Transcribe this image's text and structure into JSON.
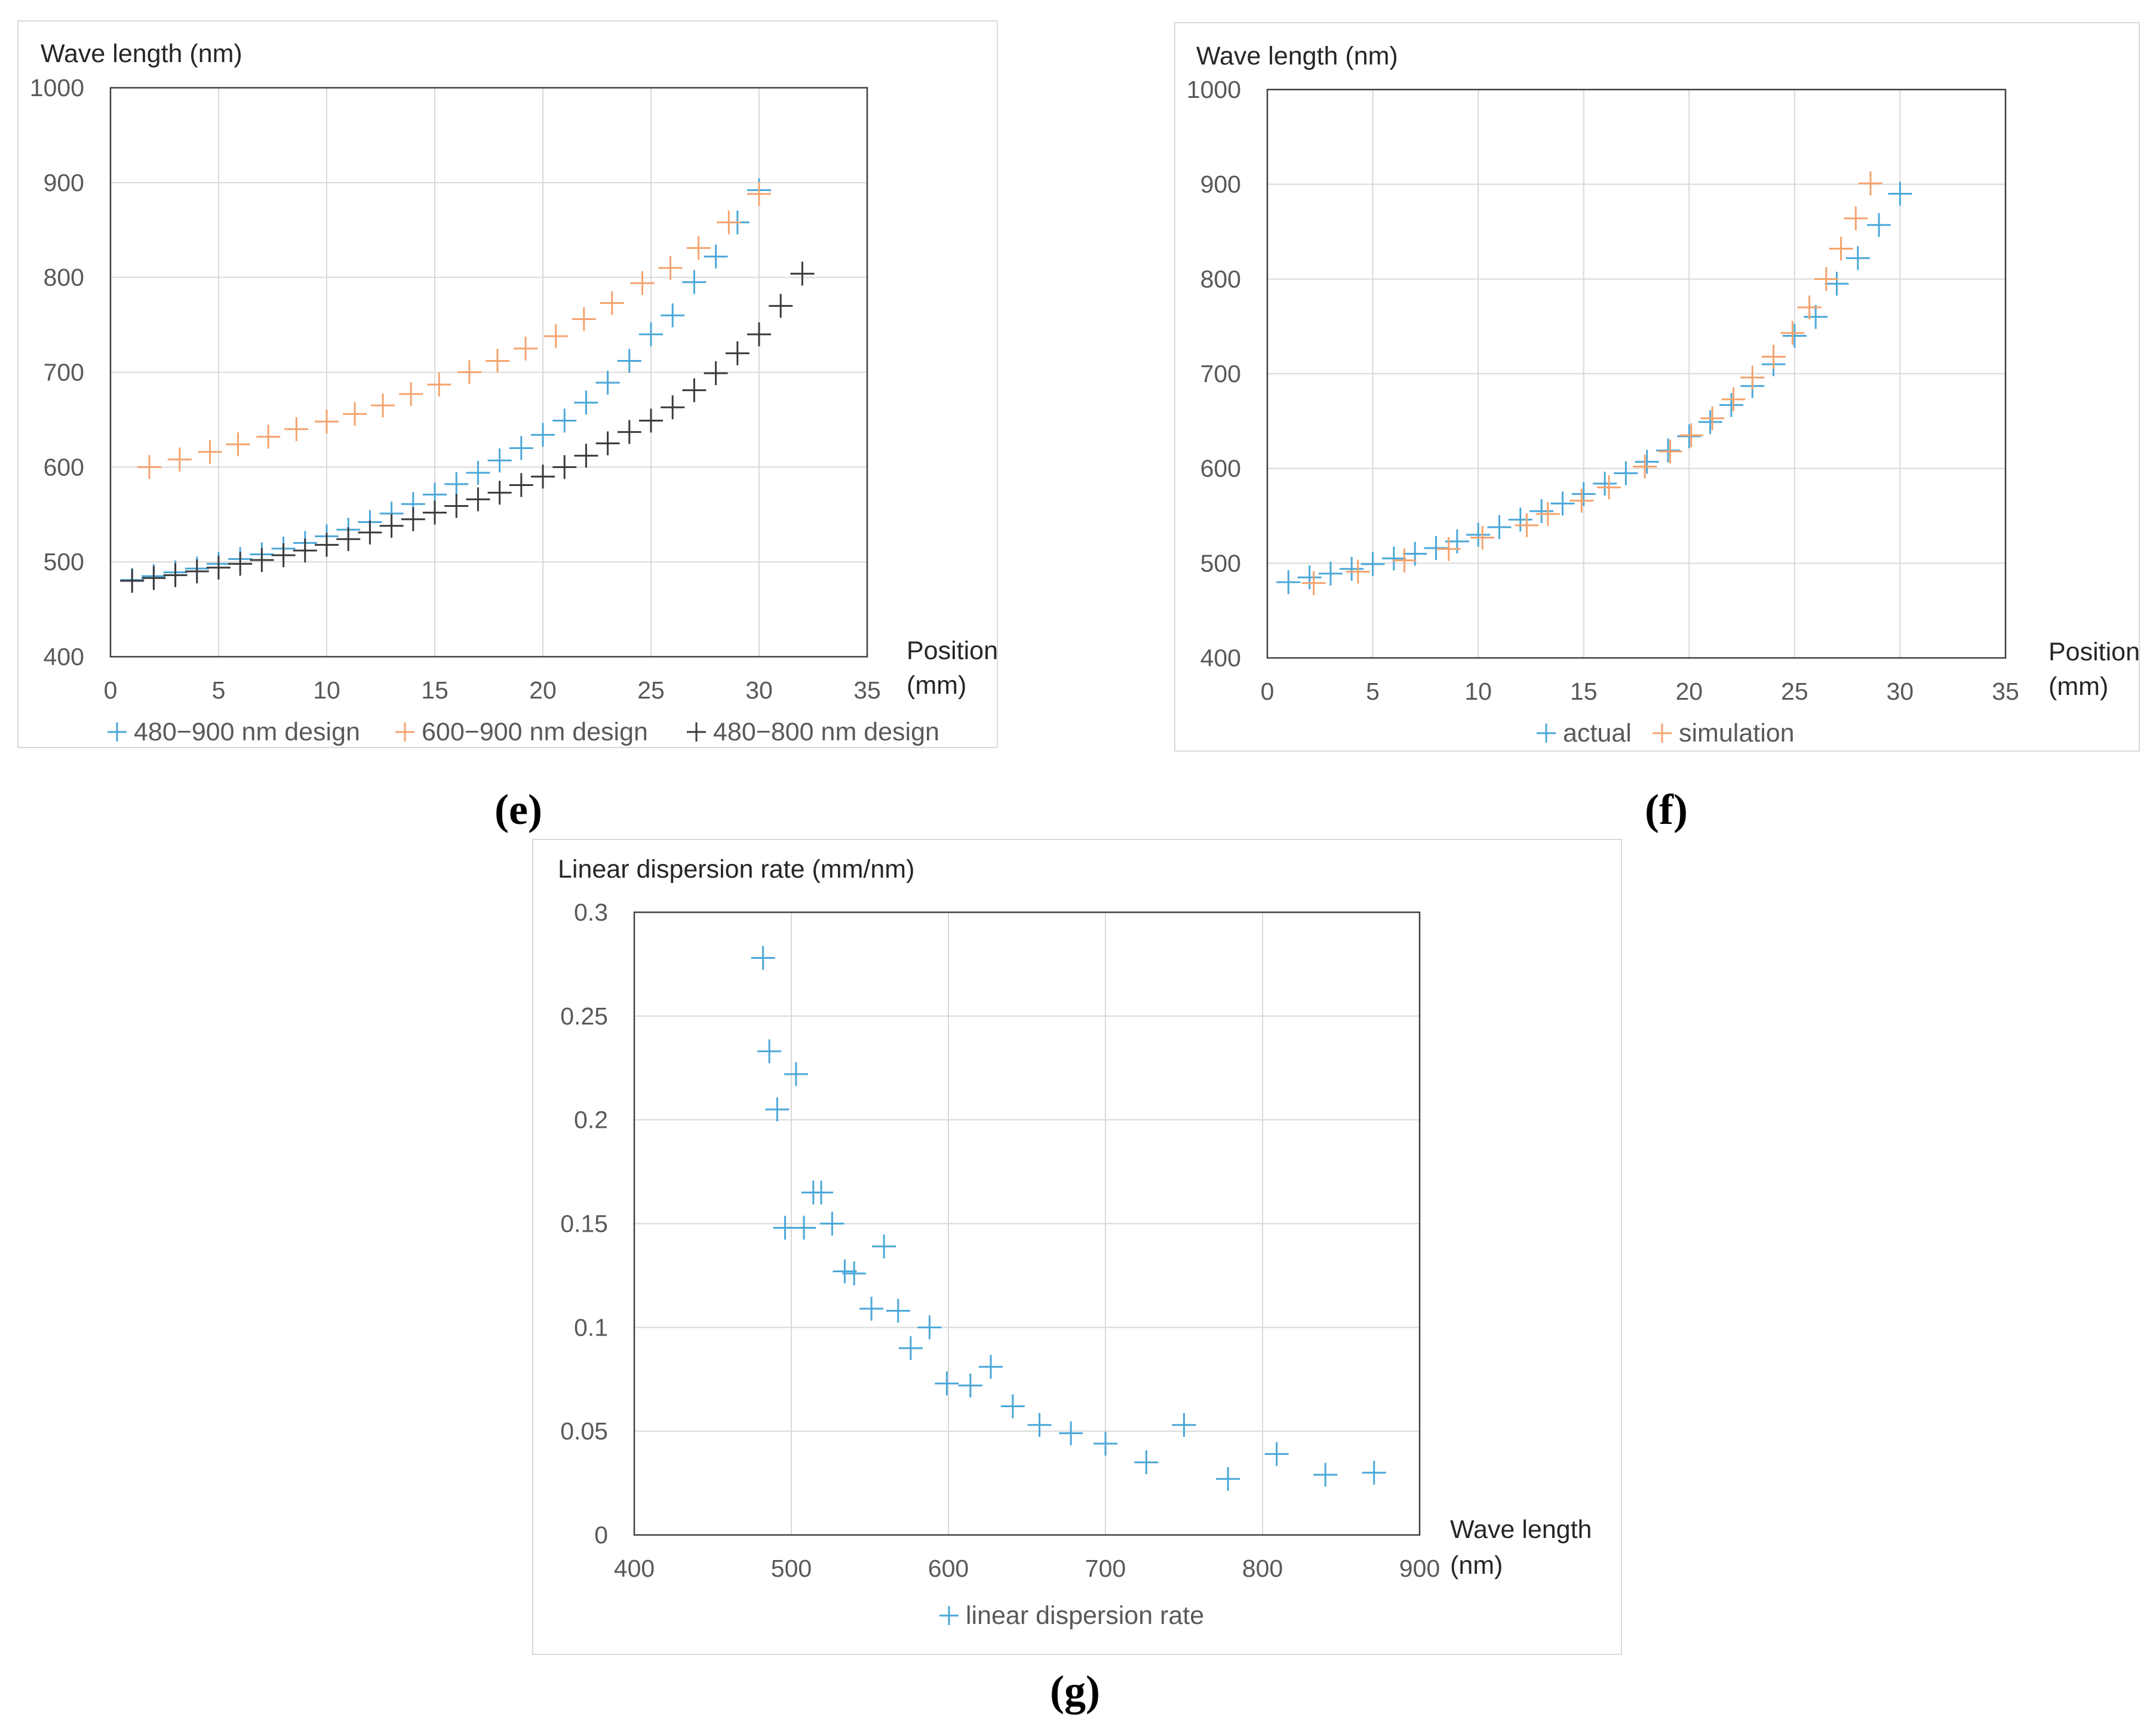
{
  "colors": {
    "blue": "#4aa7d8",
    "orange": "#f4a36e",
    "black": "#3a3a3a"
  },
  "chart_data": [
    {
      "panel": "e",
      "type": "scatter",
      "marker": "plus",
      "ylabel": "Wave length (nm)",
      "xlabel": [
        "Position",
        "(mm)"
      ],
      "xlim": [
        0,
        35
      ],
      "ylim": [
        400,
        1000
      ],
      "x_ticks": [
        0,
        5,
        10,
        15,
        20,
        25,
        30,
        35
      ],
      "y_ticks": [
        400,
        500,
        600,
        700,
        800,
        900,
        1000
      ],
      "grid": true,
      "legend_position": "bottom",
      "series": [
        {
          "name": "480−900 nm design",
          "color": "#4aa7d8",
          "x": [
            1,
            2,
            3,
            4,
            5,
            6,
            7,
            8,
            9,
            10,
            11,
            12,
            13,
            14,
            15,
            16,
            17,
            18,
            19,
            20,
            21,
            22,
            23,
            24,
            25,
            26,
            27,
            28,
            29,
            30
          ],
          "y": [
            481,
            485,
            489,
            493,
            498,
            503,
            508,
            514,
            520,
            527,
            534,
            542,
            551,
            561,
            571,
            582,
            594,
            607,
            620,
            634,
            649,
            668,
            689,
            712,
            740,
            760,
            795,
            822,
            858,
            892
          ]
        },
        {
          "name": "600−900 nm design",
          "color": "#f4a36e",
          "x": [
            1.8,
            3.2,
            4.6,
            5.9,
            7.3,
            8.6,
            10,
            11.3,
            12.6,
            13.9,
            15.2,
            16.6,
            17.9,
            19.2,
            20.6,
            21.9,
            23.2,
            24.6,
            25.9,
            27.2,
            28.6,
            30
          ],
          "y": [
            600,
            608,
            616,
            624,
            632,
            640,
            648,
            656,
            665,
            677,
            687,
            700,
            712,
            725,
            738,
            756,
            773,
            794,
            810,
            831,
            858,
            888
          ]
        },
        {
          "name": "480−800 nm design",
          "color": "#3a3a3a",
          "x": [
            1,
            2,
            3,
            4,
            5,
            6,
            7,
            8,
            9,
            10,
            11,
            12,
            13,
            14,
            15,
            16,
            17,
            18,
            19,
            20,
            21,
            22,
            23,
            24,
            25,
            26,
            27,
            28,
            29,
            30,
            31,
            32
          ],
          "y": [
            480,
            483,
            486,
            490,
            494,
            498,
            502,
            507,
            512,
            518,
            524,
            531,
            538,
            545,
            552,
            559,
            566,
            573,
            581,
            590,
            600,
            612,
            625,
            637,
            649,
            663,
            681,
            699,
            720,
            740,
            770,
            804
          ]
        }
      ]
    },
    {
      "panel": "f",
      "type": "scatter",
      "marker": "plus",
      "ylabel": "Wave length (nm)",
      "xlabel": [
        "Position",
        "(mm)"
      ],
      "xlim": [
        0,
        35
      ],
      "ylim": [
        400,
        1000
      ],
      "x_ticks": [
        0,
        5,
        10,
        15,
        20,
        25,
        30,
        35
      ],
      "y_ticks": [
        400,
        500,
        600,
        700,
        800,
        900,
        1000
      ],
      "grid": true,
      "legend_position": "bottom",
      "series": [
        {
          "name": "actual",
          "color": "#4aa7d8",
          "x": [
            1,
            2,
            3,
            4,
            5,
            6,
            7,
            8,
            9,
            10,
            11,
            12,
            13,
            14,
            15,
            16,
            17,
            18,
            19,
            20,
            21,
            22,
            23,
            24,
            25,
            26,
            27,
            28,
            29,
            30
          ],
          "y": [
            480,
            485,
            489,
            494,
            499,
            505,
            510,
            516,
            523,
            530,
            538,
            546,
            555,
            563,
            573,
            584,
            595,
            607,
            619,
            634,
            649,
            667,
            687,
            710,
            740,
            760,
            795,
            822,
            857,
            890
          ]
        },
        {
          "name": "simulation",
          "color": "#f4a36e",
          "x": [
            2.2,
            4.3,
            6.5,
            8.6,
            10.2,
            12.3,
            13.3,
            14.9,
            16.2,
            17.9,
            19.1,
            20.1,
            21.1,
            22.1,
            23.0,
            24.0,
            24.9,
            25.7,
            26.5,
            27.2,
            27.9,
            28.6
          ],
          "y": [
            479,
            491,
            503,
            515,
            527,
            540,
            552,
            566,
            580,
            602,
            618,
            635,
            653,
            673,
            696,
            718,
            743,
            770,
            800,
            832,
            864,
            901
          ]
        }
      ]
    },
    {
      "panel": "g",
      "type": "scatter",
      "marker": "plus",
      "ylabel": "Linear dispersion rate (mm/nm)",
      "xlabel": [
        "Wave length",
        "(nm)"
      ],
      "xlim": [
        400,
        900
      ],
      "ylim": [
        0,
        0.3
      ],
      "x_ticks": [
        400,
        500,
        600,
        700,
        800,
        900
      ],
      "y_ticks": [
        0,
        0.05,
        0.1,
        0.15,
        0.2,
        0.25,
        0.3
      ],
      "grid": true,
      "legend_position": "bottom",
      "series": [
        {
          "name": "linear dispersion rate",
          "color": "#4aa7d8",
          "x": [
            482,
            486,
            491,
            496,
            503,
            508,
            514,
            519,
            526,
            534,
            540,
            551,
            559,
            568,
            576,
            588,
            599,
            614,
            627,
            641,
            658,
            678,
            700,
            726,
            750,
            778,
            809,
            840,
            871
          ],
          "y": [
            0.278,
            0.233,
            0.205,
            0.148,
            0.222,
            0.148,
            0.165,
            0.165,
            0.15,
            0.127,
            0.126,
            0.109,
            0.139,
            0.108,
            0.09,
            0.1,
            0.073,
            0.072,
            0.081,
            0.062,
            0.053,
            0.049,
            0.044,
            0.035,
            0.053,
            0.027,
            0.039,
            0.029,
            0.03
          ]
        }
      ]
    }
  ]
}
